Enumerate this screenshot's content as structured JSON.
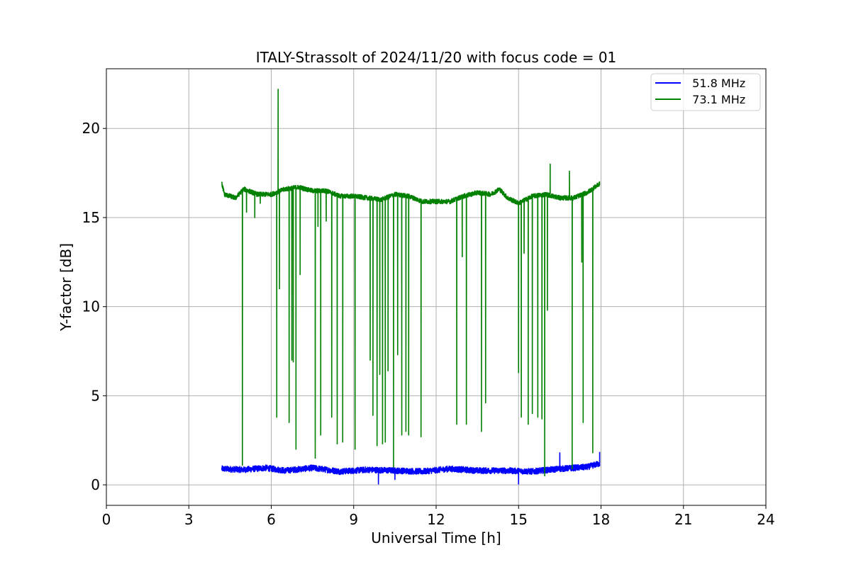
{
  "chart_data": {
    "type": "line",
    "title": "ITALY-Strassolt of 2024/11/20 with focus code = 01",
    "xlabel": "Universal Time [h]",
    "ylabel": "Y-factor [dB]",
    "xlim": [
      0,
      24
    ],
    "ylim": [
      -1.15,
      23.35
    ],
    "xticks": [
      0,
      3,
      6,
      9,
      12,
      15,
      18,
      21,
      24
    ],
    "yticks": [
      0,
      5,
      10,
      15,
      20
    ],
    "grid": true,
    "legend_position": "top-right",
    "series": [
      {
        "name": "  51.8 MHz",
        "color": "#0000ff",
        "baseline_points": [
          [
            4.2,
            0.9
          ],
          [
            5.0,
            0.85
          ],
          [
            5.8,
            0.95
          ],
          [
            6.5,
            0.8
          ],
          [
            7.5,
            0.95
          ],
          [
            8.5,
            0.75
          ],
          [
            9.5,
            0.85
          ],
          [
            10.5,
            0.8
          ],
          [
            11.5,
            0.75
          ],
          [
            12.5,
            0.9
          ],
          [
            13.5,
            0.8
          ],
          [
            14.5,
            0.8
          ],
          [
            15.5,
            0.75
          ],
          [
            16.5,
            0.9
          ],
          [
            17.5,
            1.0
          ],
          [
            17.95,
            1.2
          ]
        ],
        "spikes": [
          [
            9.9,
            0.05
          ],
          [
            10.5,
            0.3
          ],
          [
            15.0,
            0.05
          ],
          [
            16.5,
            1.8
          ],
          [
            17.95,
            1.85
          ]
        ]
      },
      {
        "name": "  73.1 MHz",
        "color": "#008000",
        "baseline_points": [
          [
            4.2,
            16.9
          ],
          [
            4.3,
            16.3
          ],
          [
            4.7,
            16.1
          ],
          [
            5.0,
            16.6
          ],
          [
            5.5,
            16.3
          ],
          [
            6.0,
            16.3
          ],
          [
            6.5,
            16.6
          ],
          [
            7.0,
            16.7
          ],
          [
            7.5,
            16.5
          ],
          [
            8.0,
            16.5
          ],
          [
            8.5,
            16.2
          ],
          [
            9.0,
            16.2
          ],
          [
            9.5,
            16.1
          ],
          [
            10.0,
            16.0
          ],
          [
            10.5,
            16.3
          ],
          [
            11.0,
            16.2
          ],
          [
            11.5,
            15.9
          ],
          [
            12.0,
            15.9
          ],
          [
            12.5,
            15.9
          ],
          [
            13.0,
            16.2
          ],
          [
            13.5,
            16.4
          ],
          [
            14.0,
            16.3
          ],
          [
            14.3,
            16.6
          ],
          [
            14.6,
            16.1
          ],
          [
            15.0,
            15.8
          ],
          [
            15.5,
            16.2
          ],
          [
            16.0,
            16.3
          ],
          [
            16.5,
            16.1
          ],
          [
            17.0,
            16.1
          ],
          [
            17.5,
            16.4
          ],
          [
            17.95,
            16.9
          ]
        ],
        "spikes": [
          [
            4.95,
            1.1
          ],
          [
            5.1,
            15.3
          ],
          [
            5.4,
            15.0
          ],
          [
            5.6,
            15.8
          ],
          [
            6.2,
            3.8
          ],
          [
            6.25,
            22.2
          ],
          [
            6.3,
            11.0
          ],
          [
            6.65,
            3.5
          ],
          [
            6.75,
            7.0
          ],
          [
            6.8,
            6.9
          ],
          [
            6.9,
            2.0
          ],
          [
            7.05,
            11.8
          ],
          [
            7.6,
            1.5
          ],
          [
            7.7,
            14.5
          ],
          [
            7.8,
            2.8
          ],
          [
            8.0,
            14.8
          ],
          [
            8.2,
            3.8
          ],
          [
            8.4,
            2.3
          ],
          [
            8.6,
            2.4
          ],
          [
            9.05,
            2.0
          ],
          [
            9.6,
            7.0
          ],
          [
            9.7,
            3.9
          ],
          [
            9.85,
            2.2
          ],
          [
            9.95,
            6.2
          ],
          [
            10.05,
            2.3
          ],
          [
            10.15,
            2.4
          ],
          [
            10.25,
            6.4
          ],
          [
            10.45,
            1.0
          ],
          [
            10.6,
            7.3
          ],
          [
            10.75,
            2.8
          ],
          [
            10.9,
            3.0
          ],
          [
            11.0,
            2.8
          ],
          [
            11.45,
            2.7
          ],
          [
            12.75,
            3.4
          ],
          [
            12.95,
            12.8
          ],
          [
            13.1,
            3.4
          ],
          [
            13.65,
            3.0
          ],
          [
            13.8,
            4.6
          ],
          [
            15.0,
            6.3
          ],
          [
            15.1,
            3.8
          ],
          [
            15.2,
            13.0
          ],
          [
            15.35,
            3.4
          ],
          [
            15.5,
            4.0
          ],
          [
            15.7,
            3.8
          ],
          [
            15.85,
            3.7
          ],
          [
            15.95,
            0.5
          ],
          [
            16.05,
            9.8
          ],
          [
            16.15,
            18.0
          ],
          [
            16.85,
            17.6
          ],
          [
            16.95,
            0.9
          ],
          [
            17.3,
            12.5
          ],
          [
            17.35,
            3.5
          ],
          [
            17.7,
            1.8
          ]
        ]
      }
    ]
  }
}
